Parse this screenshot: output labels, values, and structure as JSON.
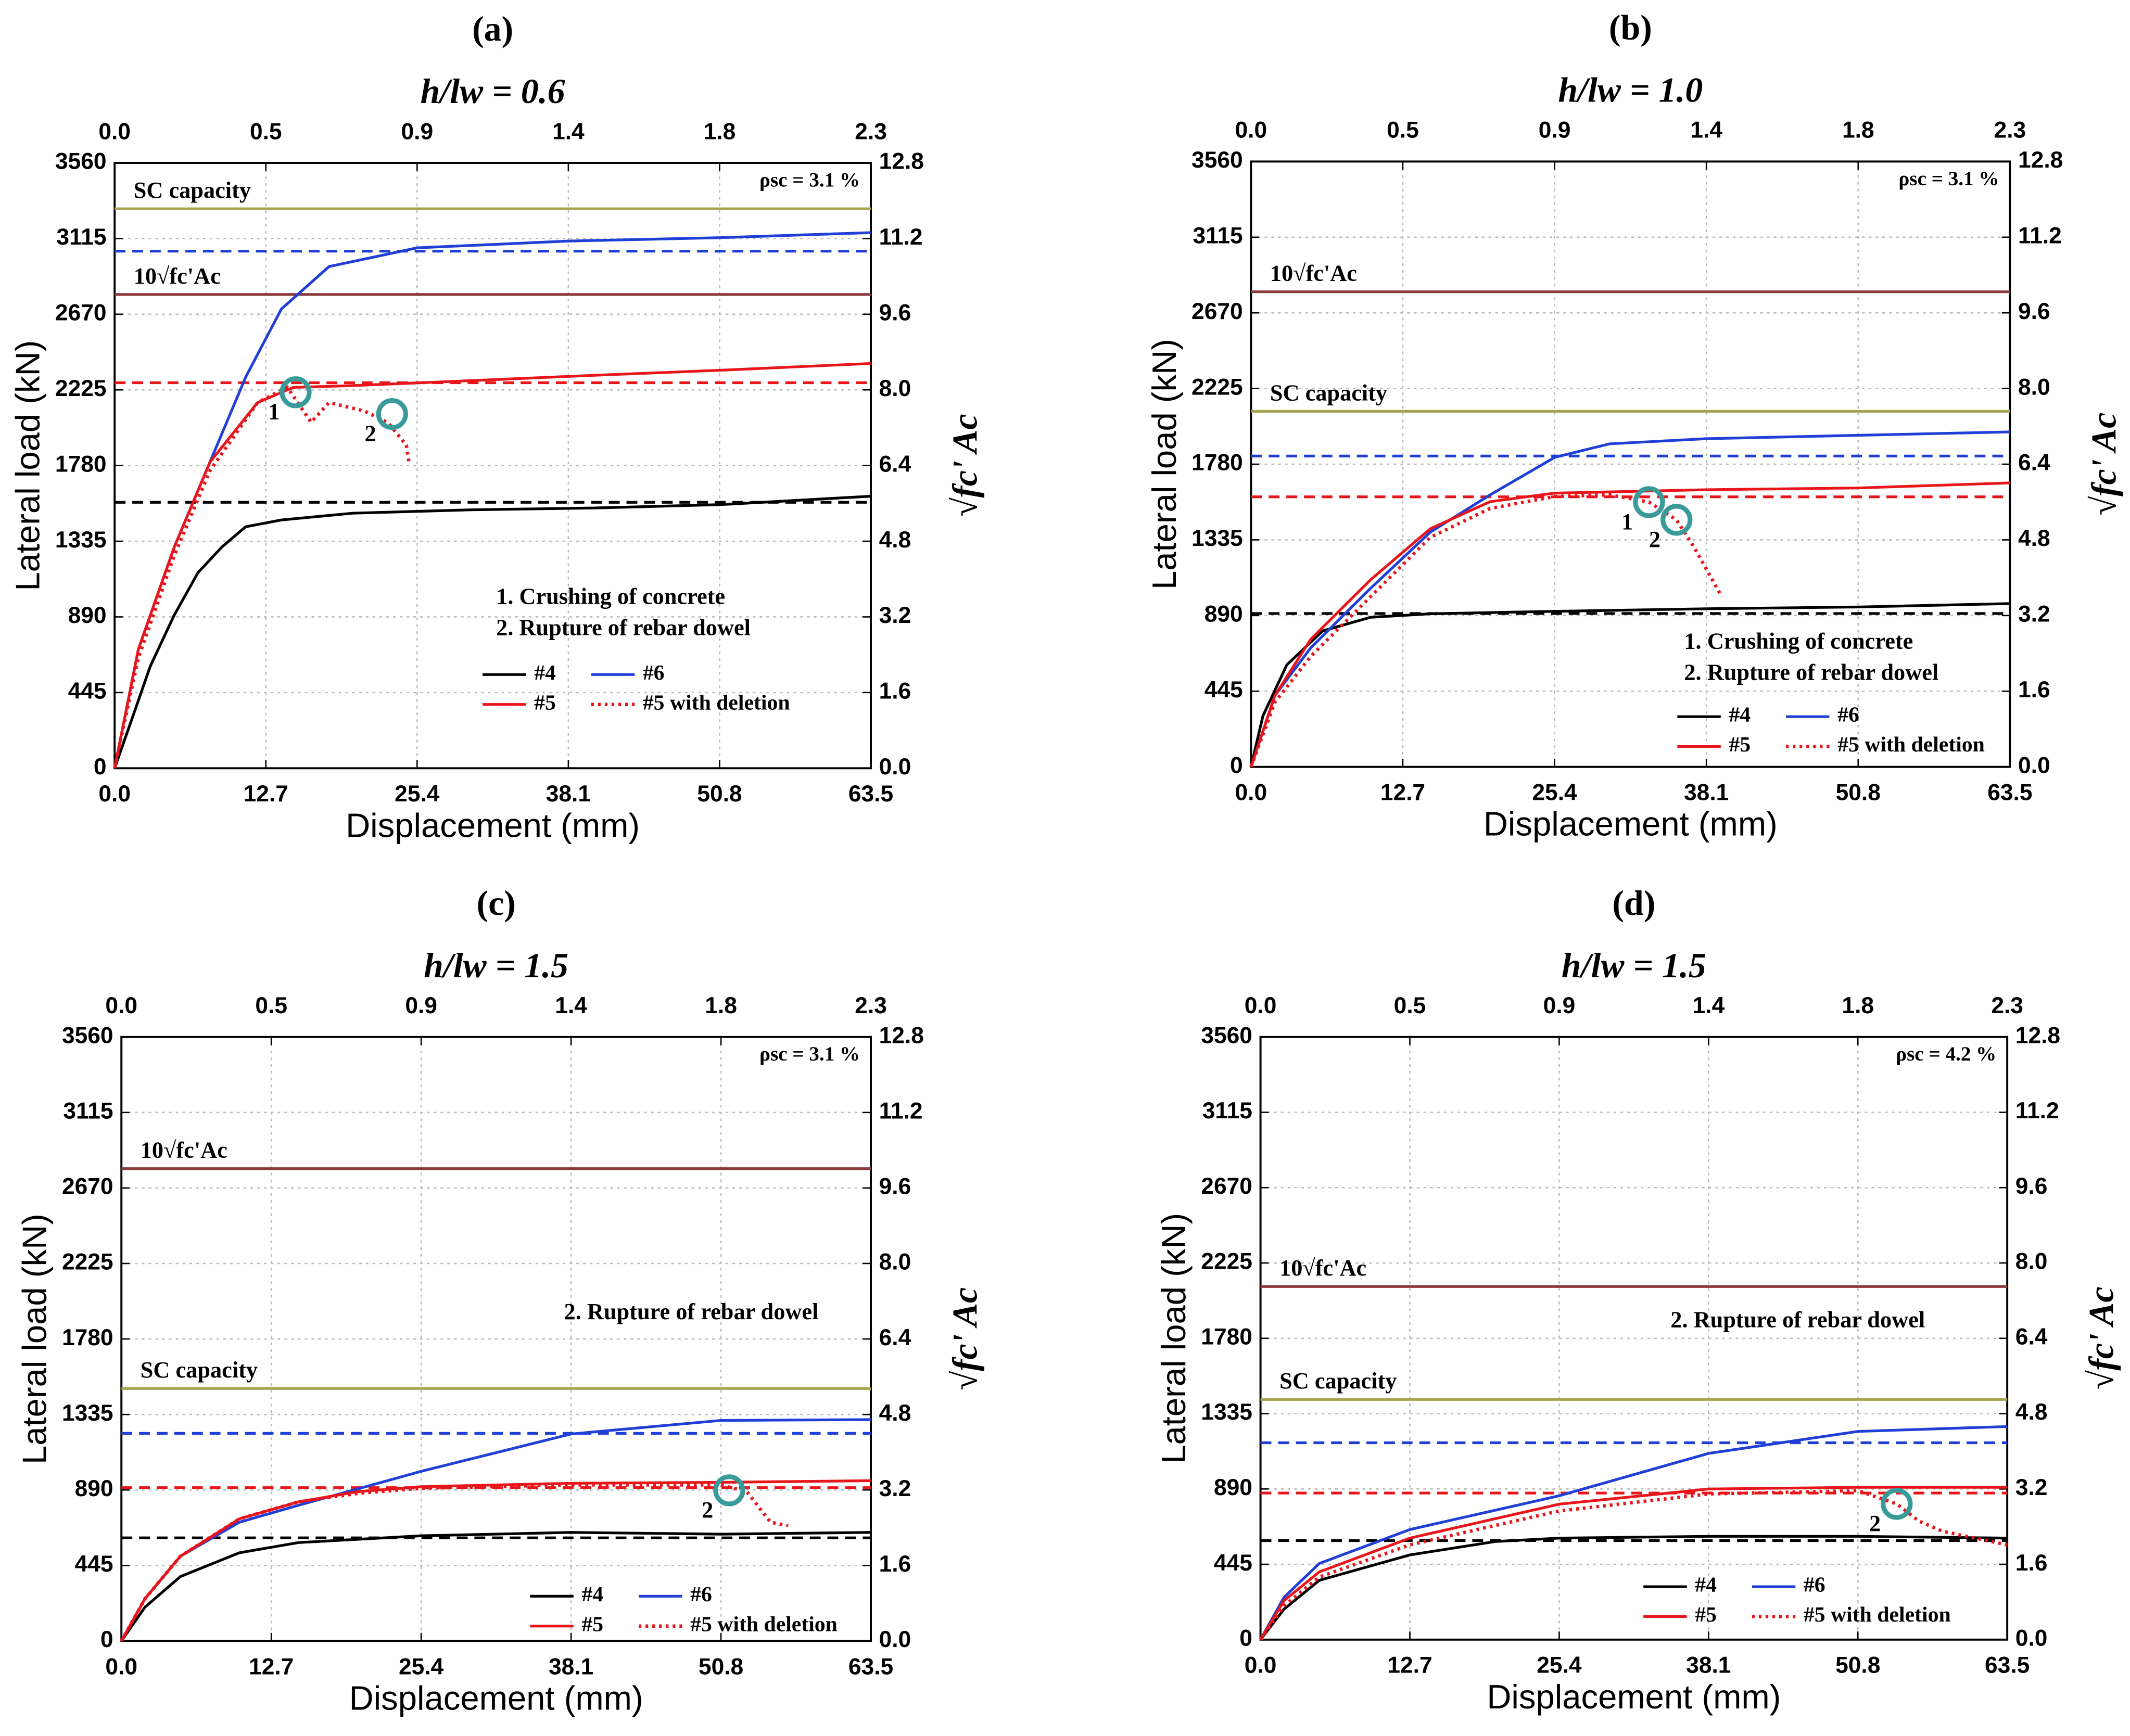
{
  "chart_data": [
    {
      "type": "line",
      "panel": "(a)",
      "title": "h/lw = 0.6",
      "x_label": "Displacement (mm)",
      "y_label": "Lateral load (kN)",
      "y2_label": "√fc' Ac",
      "annotation": "ρsc = 3.1 %",
      "notes": [
        "1. Crushing of concrete",
        "2. Rupture of rebar dowel"
      ],
      "grid": true,
      "legend": "lower right",
      "xlim": [
        0,
        63.5
      ],
      "xticks": [
        {
          "value": 0,
          "label": "0.0"
        },
        12.7,
        25.4,
        38.1,
        50.8,
        63.5
      ],
      "x2lim": [
        0,
        2.3
      ],
      "x2ticks": [
        {
          "value": 0,
          "label": "0.0"
        },
        {
          "value": 0.46,
          "label": "0.5"
        },
        {
          "value": 0.92,
          "label": "0.9"
        },
        {
          "value": 1.38,
          "label": "1.4"
        },
        {
          "value": 1.84,
          "label": "1.8"
        },
        2.3
      ],
      "ylim": [
        0,
        3560
      ],
      "yticks": [
        0,
        445,
        890,
        1335,
        1780,
        2225,
        2670,
        3115,
        3560
      ],
      "y2lim": [
        0,
        12.8
      ],
      "y2ticks": [
        {
          "value": 0,
          "label": "0.0"
        },
        1.6,
        3.2,
        4.8,
        6.4,
        {
          "value": 8,
          "label": "8.0"
        },
        9.6,
        11.2,
        12.8
      ],
      "reference_lines": [
        {
          "label": "SC capacity",
          "value": 3290,
          "color": "#a5a552",
          "style": "solid"
        },
        {
          "label": "10√fc'Ac",
          "value": 2786,
          "color": "#8b3a3a",
          "style": "solid"
        },
        {
          "value": 3041,
          "color": "#1f3fd6",
          "style": "dashed"
        },
        {
          "value": 2267,
          "color": "#e8161a",
          "style": "dashed"
        },
        {
          "value": 1564,
          "color": "#000000",
          "style": "dashed"
        }
      ],
      "series": [
        {
          "name": "#4",
          "color": "#000000",
          "style": "solid",
          "x": [
            0,
            1.5,
            3,
            5,
            7,
            9,
            11,
            14,
            20,
            30,
            40,
            50.8,
            63.5
          ],
          "values": [
            0,
            300,
            600,
            900,
            1150,
            1300,
            1420,
            1460,
            1500,
            1520,
            1530,
            1550,
            1600
          ]
        },
        {
          "name": "#6",
          "color": "#1f3fd6",
          "style": "solid",
          "x": [
            0,
            2,
            5,
            8,
            11,
            14,
            18,
            25.4,
            38.1,
            50.8,
            63.5
          ],
          "values": [
            0,
            700,
            1300,
            1800,
            2300,
            2700,
            2950,
            3060,
            3100,
            3120,
            3150
          ]
        },
        {
          "name": "#5",
          "color": "#e8161a",
          "style": "solid",
          "x": [
            0,
            2,
            5,
            8,
            12,
            15,
            20,
            30,
            40,
            50.8,
            63.5
          ],
          "values": [
            0,
            700,
            1300,
            1800,
            2150,
            2240,
            2250,
            2280,
            2310,
            2340,
            2380
          ]
        },
        {
          "name": "#5 with deletion",
          "color": "#e8161a",
          "style": "dotted",
          "x": [
            0,
            2,
            5,
            8,
            12,
            14.5,
            16.5,
            18,
            21,
            23,
            24.5,
            24.7
          ],
          "values": [
            0,
            650,
            1250,
            1750,
            2150,
            2240,
            2035,
            2150,
            2100,
            2030,
            1900,
            1804
          ]
        }
      ],
      "markers": [
        {
          "label": "1",
          "x": 15.2,
          "y": 2211
        },
        {
          "label": "2",
          "x": 23.3,
          "y": 2083
        }
      ]
    },
    {
      "type": "line",
      "panel": "(b)",
      "title": "h/lw = 1.0",
      "x_label": "Displacement (mm)",
      "y_label": "Lateral load (kN)",
      "y2_label": "√fc' Ac",
      "annotation": "ρsc = 3.1 %",
      "notes": [
        "1. Crushing of concrete",
        "2. Rupture of rebar dowel"
      ],
      "grid": true,
      "legend": "lower right",
      "xlim": [
        0,
        63.5
      ],
      "xticks": [
        {
          "value": 0,
          "label": "0.0"
        },
        12.7,
        25.4,
        38.1,
        50.8,
        63.5
      ],
      "x2lim": [
        0,
        2.3
      ],
      "x2ticks": [
        {
          "value": 0,
          "label": "0.0"
        },
        {
          "value": 0.46,
          "label": "0.5"
        },
        {
          "value": 0.92,
          "label": "0.9"
        },
        {
          "value": 1.38,
          "label": "1.4"
        },
        {
          "value": 1.84,
          "label": "1.8"
        },
        2.3
      ],
      "ylim": [
        0,
        3560
      ],
      "yticks": [
        0,
        445,
        890,
        1335,
        1780,
        2225,
        2670,
        3115,
        3560
      ],
      "y2lim": [
        0,
        12.8
      ],
      "y2ticks": [
        {
          "value": 0,
          "label": "0.0"
        },
        1.6,
        3.2,
        4.8,
        6.4,
        {
          "value": 8,
          "label": "8.0"
        },
        9.6,
        11.2,
        12.8
      ],
      "reference_lines": [
        {
          "label": "10√fc'Ac",
          "value": 2794,
          "color": "#8b3a3a",
          "style": "solid"
        },
        {
          "label": "SC capacity",
          "value": 2091,
          "color": "#a5a552",
          "style": "solid"
        },
        {
          "value": 1828,
          "color": "#1f3fd6",
          "style": "dashed"
        },
        {
          "value": 1588,
          "color": "#e8161a",
          "style": "dashed"
        },
        {
          "value": 902,
          "color": "#000000",
          "style": "dashed"
        }
      ],
      "series": [
        {
          "name": "#4",
          "color": "#000000",
          "style": "solid",
          "x": [
            0,
            1,
            3,
            6,
            10,
            15,
            25.4,
            38.1,
            50.8,
            63.5
          ],
          "values": [
            0,
            300,
            600,
            800,
            880,
            900,
            915,
            930,
            940,
            960
          ]
        },
        {
          "name": "#6",
          "color": "#1f3fd6",
          "style": "solid",
          "x": [
            0,
            2,
            5,
            10,
            15,
            20,
            25.4,
            30,
            38.1,
            50.8,
            63.5
          ],
          "values": [
            0,
            420,
            700,
            1050,
            1380,
            1600,
            1820,
            1900,
            1930,
            1950,
            1970
          ]
        },
        {
          "name": "#5",
          "color": "#e8161a",
          "style": "solid",
          "x": [
            0,
            2,
            5,
            10,
            15,
            20,
            25.4,
            38.1,
            50.8,
            63.5
          ],
          "values": [
            0,
            420,
            750,
            1100,
            1400,
            1560,
            1610,
            1630,
            1640,
            1670
          ]
        },
        {
          "name": "#5 with deletion",
          "color": "#e8161a",
          "style": "dotted",
          "x": [
            0,
            2,
            5,
            10,
            15,
            20,
            25.4,
            30,
            33.3,
            35.6,
            37,
            39.4
          ],
          "values": [
            0,
            380,
            650,
            1000,
            1350,
            1520,
            1590,
            1600,
            1557,
            1453,
            1300,
            1000
          ]
        }
      ],
      "markers": [
        {
          "label": "1",
          "x": 33.3,
          "y": 1557
        },
        {
          "label": "2",
          "x": 35.6,
          "y": 1453
        }
      ]
    },
    {
      "type": "line",
      "panel": "(c)",
      "title": "h/lw = 1.5",
      "x_label": "Displacement (mm)",
      "y_label": "Lateral load (kN)",
      "y2_label": "√fc' Ac",
      "annotation": "ρsc = 3.1 %",
      "notes": [
        "2. Rupture of rebar dowel"
      ],
      "grid": true,
      "legend": "lower right",
      "xlim": [
        0,
        63.5
      ],
      "xticks": [
        {
          "value": 0,
          "label": "0.0"
        },
        12.7,
        25.4,
        38.1,
        50.8,
        63.5
      ],
      "x2lim": [
        0,
        2.3
      ],
      "x2ticks": [
        {
          "value": 0,
          "label": "0.0"
        },
        {
          "value": 0.46,
          "label": "0.5"
        },
        {
          "value": 0.92,
          "label": "0.9"
        },
        {
          "value": 1.38,
          "label": "1.4"
        },
        {
          "value": 1.84,
          "label": "1.8"
        },
        2.3
      ],
      "ylim": [
        0,
        3560
      ],
      "yticks": [
        0,
        445,
        890,
        1335,
        1780,
        2225,
        2670,
        3115,
        3560
      ],
      "y2lim": [
        0,
        12.8
      ],
      "y2ticks": [
        {
          "value": 0,
          "label": "0.0"
        },
        1.6,
        3.2,
        4.8,
        6.4,
        {
          "value": 8,
          "label": "8.0"
        },
        9.6,
        11.2,
        12.8
      ],
      "reference_lines": [
        {
          "label": "10√fc'Ac",
          "value": 2784,
          "color": "#8b3a3a",
          "style": "solid"
        },
        {
          "label": "SC capacity",
          "value": 1488,
          "color": "#a5a552",
          "style": "solid"
        },
        {
          "value": 1224,
          "color": "#1f3fd6",
          "style": "dashed"
        },
        {
          "value": 904,
          "color": "#e8161a",
          "style": "dashed"
        },
        {
          "value": 608,
          "color": "#000000",
          "style": "dashed"
        }
      ],
      "series": [
        {
          "name": "#4",
          "color": "#000000",
          "style": "solid",
          "x": [
            0,
            2,
            5,
            10,
            15,
            25.4,
            38.1,
            50.8,
            63.5
          ],
          "values": [
            0,
            200,
            380,
            520,
            580,
            620,
            640,
            630,
            640
          ]
        },
        {
          "name": "#6",
          "color": "#1f3fd6",
          "style": "solid",
          "x": [
            0,
            2,
            5,
            10,
            15,
            25.4,
            38.1,
            50.8,
            63.5
          ],
          "values": [
            0,
            250,
            500,
            700,
            800,
            1000,
            1220,
            1300,
            1305
          ]
        },
        {
          "name": "#5",
          "color": "#e8161a",
          "style": "solid",
          "x": [
            0,
            2,
            5,
            10,
            15,
            20,
            25.4,
            38.1,
            50.8,
            63.5
          ],
          "values": [
            0,
            250,
            500,
            720,
            820,
            880,
            910,
            930,
            935,
            945
          ]
        },
        {
          "name": "#5 with deletion",
          "color": "#e8161a",
          "style": "dotted",
          "x": [
            0,
            2,
            5,
            10,
            15,
            20,
            25.4,
            38.1,
            50.8,
            53,
            55,
            56.5
          ],
          "values": [
            0,
            250,
            500,
            720,
            820,
            870,
            900,
            920,
            920,
            880,
            700,
            680
          ]
        }
      ],
      "markers": [
        {
          "label": "2",
          "x": 51.5,
          "y": 888
        }
      ]
    },
    {
      "type": "line",
      "panel": "(d)",
      "title": "h/lw = 1.5",
      "x_label": "Displacement (mm)",
      "y_label": "Lateral load (kN)",
      "y2_label": "√fc' Ac",
      "annotation": "ρsc = 4.2 %",
      "notes": [
        "2. Rupture of rebar dowel"
      ],
      "grid": true,
      "legend": "lower right",
      "xlim": [
        0,
        63.5
      ],
      "xticks": [
        {
          "value": 0,
          "label": "0.0"
        },
        12.7,
        25.4,
        38.1,
        50.8,
        63.5
      ],
      "x2lim": [
        0,
        2.3
      ],
      "x2ticks": [
        {
          "value": 0,
          "label": "0.0"
        },
        {
          "value": 0.46,
          "label": "0.5"
        },
        {
          "value": 0.92,
          "label": "0.9"
        },
        {
          "value": 1.38,
          "label": "1.4"
        },
        {
          "value": 1.84,
          "label": "1.8"
        },
        2.3
      ],
      "ylim": [
        0,
        3560
      ],
      "yticks": [
        0,
        445,
        890,
        1335,
        1780,
        2225,
        2670,
        3115,
        3560
      ],
      "y2lim": [
        0,
        12.8
      ],
      "y2ticks": [
        {
          "value": 0,
          "label": "0.0"
        },
        1.6,
        3.2,
        4.8,
        6.4,
        {
          "value": 8,
          "label": "8.0"
        },
        9.6,
        11.2,
        12.8
      ],
      "reference_lines": [
        {
          "label": "10√fc'Ac",
          "value": 2086,
          "color": "#8b3a3a",
          "style": "solid"
        },
        {
          "label": "SC capacity",
          "value": 1419,
          "color": "#a5a552",
          "style": "solid"
        },
        {
          "value": 1163,
          "color": "#1f3fd6",
          "style": "dashed"
        },
        {
          "value": 866,
          "color": "#e8161a",
          "style": "dashed"
        },
        {
          "value": 585,
          "color": "#000000",
          "style": "dashed"
        }
      ],
      "series": [
        {
          "name": "#4",
          "color": "#000000",
          "style": "solid",
          "x": [
            0,
            2,
            5,
            12.7,
            20,
            25.4,
            38.1,
            50.8,
            63.5
          ],
          "values": [
            0,
            180,
            350,
            500,
            580,
            600,
            610,
            610,
            600
          ]
        },
        {
          "name": "#6",
          "color": "#1f3fd6",
          "style": "solid",
          "x": [
            0,
            2,
            5,
            12.7,
            25.4,
            38.1,
            50.8,
            63.5
          ],
          "values": [
            0,
            250,
            450,
            650,
            850,
            1100,
            1230,
            1259
          ]
        },
        {
          "name": "#5",
          "color": "#e8161a",
          "style": "solid",
          "x": [
            0,
            2,
            5,
            12.7,
            25.4,
            38.1,
            50.8,
            63.5
          ],
          "values": [
            0,
            230,
            400,
            600,
            800,
            890,
            900,
            900
          ]
        },
        {
          "name": "#5 with deletion",
          "color": "#e8161a",
          "style": "dotted",
          "x": [
            0,
            2,
            5,
            12.7,
            25.4,
            38.1,
            50.8,
            54.1,
            56,
            58,
            63.5
          ],
          "values": [
            0,
            200,
            370,
            560,
            760,
            860,
            880,
            802,
            700,
            640,
            560
          ]
        }
      ],
      "markers": [
        {
          "label": "2",
          "x": 54.1,
          "y": 802
        }
      ]
    }
  ]
}
